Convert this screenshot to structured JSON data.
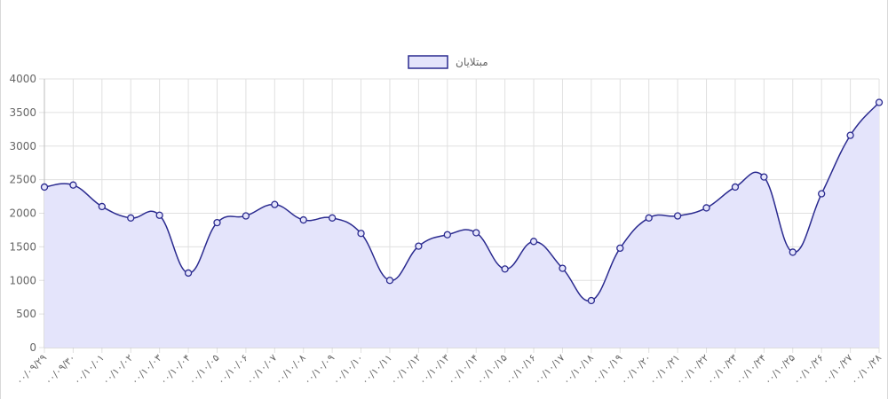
{
  "chart_data": {
    "type": "area",
    "categories": [
      "۰۰/۰۹/۲۹",
      "۰۰/۰۹/۳۰",
      "۰۰/۱۰/۰۱",
      "۰۰/۱۰/۰۲",
      "۰۰/۱۰/۰۳",
      "۰۰/۱۰/۰۴",
      "۰۰/۱۰/۰۵",
      "۰۰/۱۰/۰۶",
      "۰۰/۱۰/۰۷",
      "۰۰/۱۰/۰۸",
      "۰۰/۱۰/۰۹",
      "۰۰/۱۰/۱۰",
      "۰۰/۱۰/۱۱",
      "۰۰/۱۰/۱۲",
      "۰۰/۱۰/۱۳",
      "۰۰/۱۰/۱۴",
      "۰۰/۱۰/۱۵",
      "۰۰/۱۰/۱۶",
      "۰۰/۱۰/۱۷",
      "۰۰/۱۰/۱۸",
      "۰۰/۱۰/۱۹",
      "۰۰/۱۰/۲۰",
      "۰۰/۱۰/۲۱",
      "۰۰/۱۰/۲۲",
      "۰۰/۱۰/۲۳",
      "۰۰/۱۰/۲۴",
      "۰۰/۱۰/۲۵",
      "۰۰/۱۰/۲۶",
      "۰۰/۱۰/۲۷",
      "۰۰/۱۰/۲۸"
    ],
    "series": [
      {
        "name": "مبتلایان",
        "values": [
          2390,
          2420,
          2100,
          1930,
          1970,
          1110,
          1860,
          1960,
          2130,
          1900,
          1930,
          1700,
          1000,
          1510,
          1680,
          1710,
          1170,
          1580,
          1180,
          700,
          1480,
          1930,
          1960,
          2080,
          2390,
          2540,
          1420,
          2290,
          3160,
          3650
        ],
        "stroke": "#2a2a8f",
        "fill": "#e4e4fb"
      }
    ],
    "yticks": [
      "0",
      "500",
      "1000",
      "1500",
      "2000",
      "2500",
      "3000",
      "3500",
      "4000"
    ],
    "ylim": [
      0,
      4000
    ],
    "grid": true,
    "legend_position": "top",
    "title": "",
    "xlabel": "",
    "ylabel": ""
  }
}
